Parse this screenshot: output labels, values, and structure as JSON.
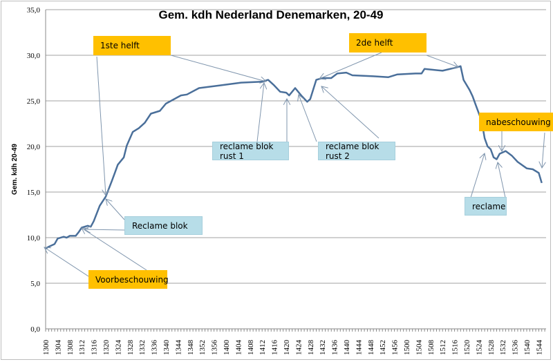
{
  "chart_data": {
    "type": "line",
    "title": "Gem. kdh Nederland Denemarken, 20-49",
    "xlabel": "",
    "ylabel": "Gem. kdh 20-49",
    "ylim": [
      0,
      35
    ],
    "yticks": [
      "0,0",
      "5,0",
      "10,0",
      "15,0",
      "20,0",
      "25,0",
      "30,0",
      "35,0"
    ],
    "ytick_values": [
      0,
      5,
      10,
      15,
      20,
      25,
      30,
      35
    ],
    "xtick_labels": [
      "1300",
      "1304",
      "1308",
      "1312",
      "1316",
      "1320",
      "1324",
      "1328",
      "1332",
      "1336",
      "1340",
      "1344",
      "1348",
      "1352",
      "1356",
      "1400",
      "1404",
      "1408",
      "1412",
      "1416",
      "1420",
      "1424",
      "1428",
      "1432",
      "1436",
      "1440",
      "1444",
      "1448",
      "1452",
      "1456",
      "1500",
      "1504",
      "1508",
      "1512",
      "1516",
      "1520",
      "1524",
      "1528",
      "1532",
      "1536",
      "1540",
      "1544"
    ],
    "x_unit": "minutes after 13:00",
    "grid": true,
    "legend": "none",
    "series": [
      {
        "name": "Gem. kdh 20-49",
        "color": "#4a6f9a",
        "x": [
          0,
          1,
          3,
          4,
          6,
          7,
          8,
          10,
          11,
          12,
          14,
          15,
          16,
          18,
          20,
          22,
          23,
          24,
          26,
          27,
          29,
          31,
          33,
          35,
          38,
          40,
          45,
          47,
          51,
          58,
          65,
          72,
          74,
          76,
          78,
          80,
          81,
          83,
          85,
          87,
          88,
          90,
          92,
          95,
          97,
          100,
          102,
          109,
          114,
          117,
          123,
          125,
          126,
          132,
          137,
          138,
          139,
          141,
          142,
          143,
          145,
          146,
          147,
          148,
          149,
          150,
          151,
          153,
          155,
          157,
          160,
          162,
          164,
          165
        ],
        "values": [
          8.8,
          9.0,
          9.3,
          9.9,
          10.1,
          10.0,
          10.2,
          10.2,
          10.6,
          11.1,
          11.3,
          11.2,
          11.8,
          13.5,
          14.5,
          16.2,
          17.1,
          18.0,
          18.8,
          20.1,
          21.6,
          22.0,
          22.6,
          23.6,
          23.9,
          24.7,
          25.6,
          25.7,
          26.4,
          26.7,
          27.0,
          27.1,
          27.3,
          26.7,
          26.0,
          25.9,
          25.6,
          26.4,
          25.6,
          24.9,
          25.2,
          27.3,
          27.5,
          27.5,
          28.0,
          28.1,
          27.8,
          27.7,
          27.6,
          27.9,
          28.0,
          28.0,
          28.5,
          28.3,
          28.7,
          28.8,
          27.3,
          26.2,
          25.5,
          24.6,
          22.8,
          20.9,
          20.0,
          19.7,
          18.8,
          18.6,
          19.2,
          19.5,
          19.0,
          18.3,
          17.6,
          17.5,
          17.1,
          16.0
        ]
      }
    ],
    "annotations": [
      {
        "text": "1ste helft",
        "style": "orange"
      },
      {
        "text": "2de helft",
        "style": "orange"
      },
      {
        "text": "nabeschouwing",
        "style": "orange"
      },
      {
        "text": "Voorbeschouwing",
        "style": "orange"
      },
      {
        "text": "Reclame blok",
        "style": "blue"
      },
      {
        "text": "reclame blok rust 1",
        "style": "blue"
      },
      {
        "text": "reclame blok rust 2",
        "style": "blue"
      },
      {
        "text": "reclame",
        "style": "blue"
      }
    ],
    "colors": {
      "orange": "#ffc000",
      "blue": "#b7dde8",
      "line": "#4a6f9a",
      "grid": "#a0a0a0",
      "arrow": "#7f95ad"
    }
  }
}
